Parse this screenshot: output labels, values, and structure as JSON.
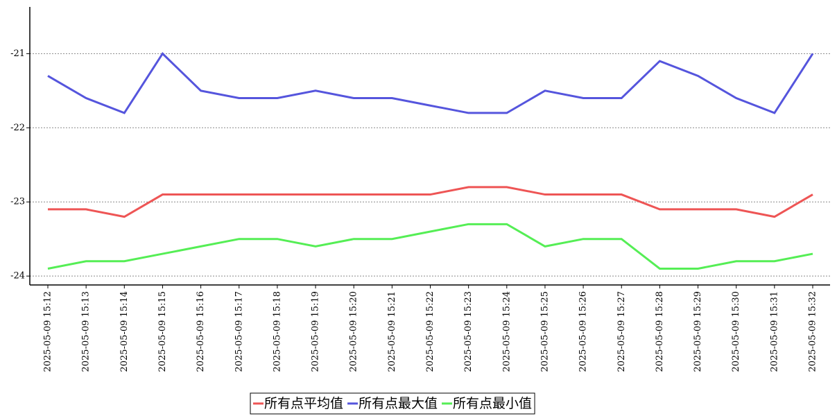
{
  "chart_data": {
    "type": "line",
    "categories": [
      "2025-05-09 15:12",
      "2025-05-09 15:13",
      "2025-05-09 15:14",
      "2025-05-09 15:15",
      "2025-05-09 15:16",
      "2025-05-09 15:17",
      "2025-05-09 15:18",
      "2025-05-09 15:19",
      "2025-05-09 15:20",
      "2025-05-09 15:21",
      "2025-05-09 15:22",
      "2025-05-09 15:23",
      "2025-05-09 15:24",
      "2025-05-09 15:25",
      "2025-05-09 15:26",
      "2025-05-09 15:27",
      "2025-05-09 15:28",
      "2025-05-09 15:29",
      "2025-05-09 15:30",
      "2025-05-09 15:31",
      "2025-05-09 15:32"
    ],
    "series": [
      {
        "name": "所有点平均值",
        "color": "#ee5555",
        "values": [
          -23.1,
          -23.1,
          -23.2,
          -22.9,
          -22.9,
          -22.9,
          -22.9,
          -22.9,
          -22.9,
          -22.9,
          -22.9,
          -22.8,
          -22.8,
          -22.9,
          -22.9,
          -22.9,
          -23.1,
          -23.1,
          -23.1,
          -23.2,
          -22.9
        ]
      },
      {
        "name": "所有点最大值",
        "color": "#5555dd",
        "values": [
          -21.3,
          -21.6,
          -21.8,
          -21.0,
          -21.5,
          -21.6,
          -21.6,
          -21.5,
          -21.6,
          -21.6,
          -21.7,
          -21.8,
          -21.8,
          -21.5,
          -21.6,
          -21.6,
          -21.1,
          -21.3,
          -21.6,
          -21.8,
          -21.0
        ]
      },
      {
        "name": "所有点最小值",
        "color": "#55ee55",
        "values": [
          -23.9,
          -23.8,
          -23.8,
          -23.7,
          -23.6,
          -23.5,
          -23.5,
          -23.6,
          -23.5,
          -23.5,
          -23.4,
          -23.3,
          -23.3,
          -23.6,
          -23.5,
          -23.5,
          -23.9,
          -23.9,
          -23.8,
          -23.8,
          -23.7
        ]
      }
    ],
    "ylim": [
      -24.12,
      -20.37
    ],
    "yticks": [
      -24,
      -23,
      -22,
      -21
    ],
    "grid": true
  }
}
